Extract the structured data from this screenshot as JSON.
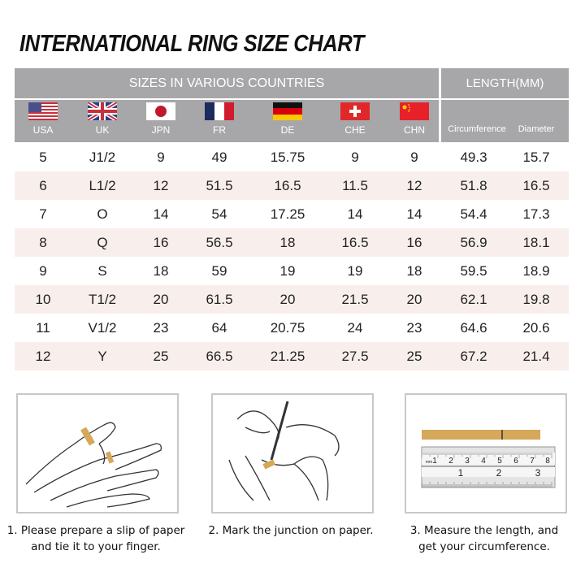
{
  "title": "INTERNATIONAL RING SIZE CHART",
  "header": {
    "sizes_label": "SIZES IN VARIOUS COUNTRIES",
    "length_label": "LENGTH(MM)",
    "countries": [
      {
        "code": "USA",
        "flag": "us-flag"
      },
      {
        "code": "UK",
        "flag": "uk-flag"
      },
      {
        "code": "JPN",
        "flag": "japan-flag"
      },
      {
        "code": "FR",
        "flag": "france-flag"
      },
      {
        "code": "DE",
        "flag": "germany-flag"
      },
      {
        "code": "CHE",
        "flag": "switzerland-flag"
      },
      {
        "code": "CHN",
        "flag": "china-flag"
      }
    ],
    "circumference": "Circumference",
    "diameter": "Diameter"
  },
  "rows": [
    [
      "5",
      "J1/2",
      "9",
      "49",
      "15.75",
      "9",
      "9",
      "49.3",
      "15.7"
    ],
    [
      "6",
      "L1/2",
      "12",
      "51.5",
      "16.5",
      "11.5",
      "12",
      "51.8",
      "16.5"
    ],
    [
      "7",
      "O",
      "14",
      "54",
      "17.25",
      "14",
      "14",
      "54.4",
      "17.3"
    ],
    [
      "8",
      "Q",
      "16",
      "56.5",
      "18",
      "16.5",
      "16",
      "56.9",
      "18.1"
    ],
    [
      "9",
      "S",
      "18",
      "59",
      "19",
      "19",
      "18",
      "59.5",
      "18.9"
    ],
    [
      "10",
      "T1/2",
      "20",
      "61.5",
      "20",
      "21.5",
      "20",
      "62.1",
      "19.8"
    ],
    [
      "11",
      "V1/2",
      "23",
      "64",
      "20.75",
      "24",
      "23",
      "64.6",
      "20.6"
    ],
    [
      "12",
      "Y",
      "25",
      "66.5",
      "21.25",
      "27.5",
      "25",
      "67.2",
      "21.4"
    ]
  ],
  "steps": [
    {
      "line1": "1. Please prepare a slip of paper",
      "line2": "and tie it to your finger."
    },
    {
      "line1": "2. Mark the junction on paper.",
      "line2": ""
    },
    {
      "line1": "3. Measure the length, and",
      "line2": "get your circumference."
    }
  ],
  "ruler": {
    "mm_ticks": [
      "1",
      "2",
      "3",
      "4",
      "5",
      "6",
      "7",
      "8"
    ],
    "inch_ticks": [
      "1",
      "2",
      "3"
    ],
    "unit": "mm"
  },
  "colors": {
    "header": "#a7a7a9",
    "row_alt": "#f8efec",
    "paper": "#d6a85a"
  }
}
